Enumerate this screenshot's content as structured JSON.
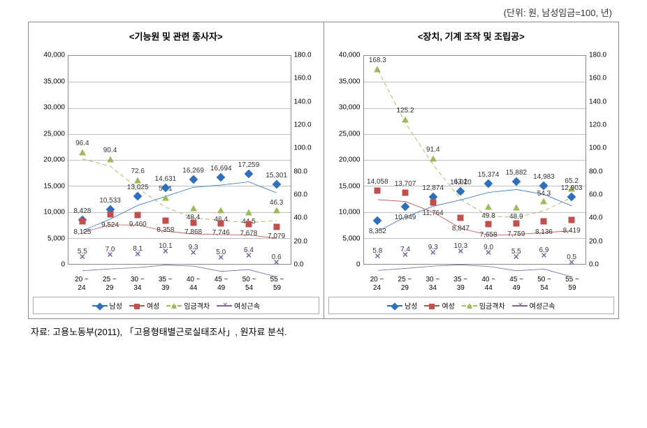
{
  "unit_label": "(단위: 원, 남성임금=100, 년)",
  "source": "자료: 고용노동부(2011), 「고용형태별근로실태조사」, 원자료 분석.",
  "axis": {
    "left": {
      "min": 0,
      "max": 40000,
      "step": 5000
    },
    "right": {
      "min": 0,
      "max": 180,
      "step": 20
    },
    "categories": [
      "20 ~\n24",
      "25 ~\n29",
      "30 ~\n34",
      "35 ~\n39",
      "40 ~\n44",
      "45 ~\n49",
      "50 ~\n54",
      "55 ~\n59"
    ]
  },
  "colors": {
    "male": "#2f6eba",
    "female": "#c0504d",
    "gap": "#9bbb59",
    "tenure": "#8064a2",
    "grid": "#bfbfbf",
    "border": "#888888",
    "text": "#333333"
  },
  "legend": {
    "male": "남성",
    "female": "여성",
    "gap": "임금격차",
    "tenure": "여성근속"
  },
  "charts": [
    {
      "title": "<기능원 및 관련 종사자>",
      "series": {
        "male": {
          "axis": "left",
          "values": [
            8428,
            10533,
            13025,
            14631,
            16269,
            16694,
            17259,
            15301
          ],
          "labels": [
            "8,428",
            "10,533",
            "13,025",
            "14,631",
            "16,269",
            "16,694",
            "17,259",
            "15,301"
          ],
          "label_dy": [
            -18,
            -18,
            -18,
            -18,
            -18,
            -18,
            -18,
            -18
          ]
        },
        "female": {
          "axis": "left",
          "values": [
            8125,
            9524,
            9460,
            8358,
            7868,
            7746,
            7678,
            7079
          ],
          "labels": [
            "8,125",
            "9,524",
            "9,460",
            "8,358",
            "7,868",
            "7,746",
            "7,678",
            "7,079"
          ],
          "label_dy": [
            10,
            10,
            8,
            8,
            8,
            8,
            8,
            8
          ]
        },
        "gap": {
          "axis": "right",
          "values": [
            96.4,
            90.4,
            72.6,
            57.1,
            48.4,
            46.4,
            44.5,
            46.3
          ],
          "labels": [
            "96.4",
            "90.4",
            "72.6",
            "57.1",
            "48.4",
            "46.4",
            "44.5",
            "46.3"
          ],
          "label_dy": [
            -18,
            -18,
            -18,
            -18,
            8,
            8,
            8,
            -16
          ]
        },
        "tenure": {
          "axis": "right",
          "values": [
            5.5,
            7.0,
            8.1,
            10.1,
            9.3,
            5.0,
            6.4,
            0.6
          ],
          "labels": [
            "5.5",
            "7.0",
            "8.1",
            "10.1",
            "9.3",
            "5.0",
            "6.4",
            "0.6"
          ],
          "label_dy": [
            -14,
            -14,
            -14,
            -14,
            -14,
            -14,
            -14,
            -14
          ]
        }
      }
    },
    {
      "title": "<장치, 기계 조작 및 조립공>",
      "series": {
        "male": {
          "axis": "left",
          "values": [
            8352,
            10949,
            12874,
            14010,
            15374,
            15882,
            14983,
            12903
          ],
          "labels": [
            "8,352",
            "10,949",
            "12,874",
            "14,010",
            "15,374",
            "15,882",
            "14,983",
            "12,903"
          ],
          "label_dy": [
            10,
            10,
            -18,
            -18,
            -18,
            -18,
            -18,
            -18
          ]
        },
        "female": {
          "axis": "left",
          "values": [
            14058,
            13707,
            11764,
            8847,
            7658,
            7759,
            8136,
            8419
          ],
          "labels": [
            "14,058",
            "13,707",
            "11,764",
            "8,847",
            "7,658",
            "7,759",
            "8,136",
            "8,419"
          ],
          "label_dy": [
            -18,
            -18,
            10,
            10,
            10,
            10,
            10,
            10
          ]
        },
        "gap": {
          "axis": "right",
          "values": [
            168.3,
            125.2,
            91.4,
            63.2,
            49.8,
            48.9,
            54.3,
            65.2
          ],
          "labels": [
            "168.3",
            "125.2",
            "91.4",
            "63.2",
            "49.8",
            "48.9",
            "54.3",
            "65.2"
          ],
          "label_dy": [
            -18,
            -18,
            -18,
            -18,
            8,
            8,
            -16,
            -16
          ]
        },
        "tenure": {
          "axis": "right",
          "values": [
            5.8,
            7.4,
            9.3,
            10.3,
            9.0,
            5.5,
            6.9,
            0.5
          ],
          "labels": [
            "5.8",
            "7.4",
            "9.3",
            "10.3",
            "9.0",
            "5.5",
            "6.9",
            "0.5"
          ],
          "label_dy": [
            -14,
            -14,
            -14,
            -14,
            -14,
            -14,
            -14,
            -14
          ]
        }
      }
    }
  ]
}
